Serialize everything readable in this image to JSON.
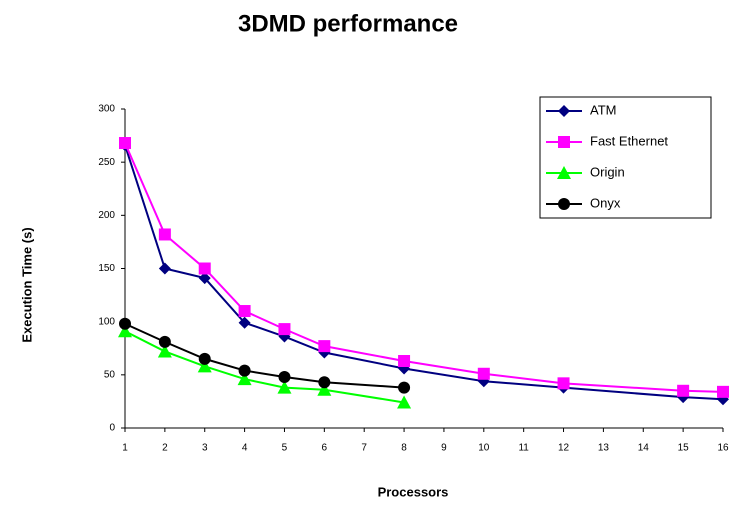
{
  "chart_data": {
    "type": "line",
    "title": "3DMD performance",
    "x_label": "Processors",
    "y_label": "Execution Time (s)",
    "xlim": [
      1,
      16
    ],
    "xticks": [
      1,
      2,
      3,
      4,
      5,
      6,
      7,
      8,
      9,
      10,
      11,
      12,
      13,
      14,
      15,
      16
    ],
    "ylim": [
      0,
      300
    ],
    "yticks": [
      0,
      50,
      100,
      150,
      200,
      250,
      300
    ],
    "legend": "top-right",
    "series": [
      {
        "name": "ATM",
        "color": "#000080",
        "marker": "diamond",
        "x": [
          1,
          2,
          3,
          4,
          5,
          6,
          8,
          10,
          12,
          15,
          16
        ],
        "values": [
          266,
          150,
          141,
          99,
          86,
          71,
          56,
          44,
          38,
          29,
          27
        ]
      },
      {
        "name": "Fast Ethernet",
        "color": "#ff00ff",
        "marker": "square",
        "x": [
          1,
          2,
          3,
          4,
          5,
          6,
          8,
          10,
          12,
          15,
          16
        ],
        "values": [
          268,
          182,
          150,
          110,
          93,
          77,
          63,
          51,
          42,
          35,
          34
        ]
      },
      {
        "name": "Origin",
        "color": "#00ff00",
        "marker": "triangle",
        "x": [
          1,
          2,
          3,
          4,
          5,
          6,
          8
        ],
        "values": [
          91,
          72,
          58,
          46,
          38,
          36,
          24
        ]
      },
      {
        "name": "Onyx",
        "color": "#000000",
        "marker": "circle",
        "x": [
          1,
          2,
          3,
          4,
          5,
          6,
          8
        ],
        "values": [
          98,
          81,
          65,
          54,
          48,
          43,
          38
        ]
      }
    ]
  }
}
